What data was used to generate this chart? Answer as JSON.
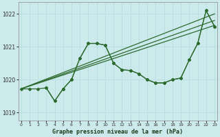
{
  "xlabel": "Graphe pression niveau de la mer (hPa)",
  "bg_color": "#cce9eb",
  "grid_color": "#b8dfe2",
  "line_color": "#2d6a2d",
  "xlim": [
    -0.3,
    23.3
  ],
  "ylim": [
    1018.75,
    1022.35
  ],
  "yticks": [
    1019,
    1020,
    1021,
    1022
  ],
  "xticks": [
    0,
    1,
    2,
    3,
    4,
    5,
    6,
    7,
    8,
    9,
    10,
    11,
    12,
    13,
    14,
    15,
    16,
    17,
    18,
    19,
    20,
    21,
    22,
    23
  ],
  "trend1_x": [
    0,
    23
  ],
  "trend1_y": [
    1019.72,
    1021.65
  ],
  "trend2_x": [
    0,
    23
  ],
  "trend2_y": [
    1019.72,
    1021.8
  ],
  "trend3_x": [
    0,
    23
  ],
  "trend3_y": [
    1019.72,
    1022.0
  ],
  "s_bell_x": [
    0,
    1,
    2,
    3,
    4,
    5,
    6,
    7,
    8,
    9,
    10,
    11,
    12,
    13,
    14,
    15,
    16,
    17,
    18,
    19,
    20,
    21,
    22,
    23
  ],
  "s_bell_y": [
    1019.72,
    1019.72,
    1019.72,
    1019.75,
    1019.35,
    1019.72,
    1020.0,
    1020.65,
    1021.1,
    1021.1,
    1021.05,
    1020.5,
    1020.3,
    1020.28,
    1020.18,
    1020.0,
    1019.9,
    1019.9,
    1020.0,
    1020.05,
    1020.6,
    1021.1,
    1022.1,
    1021.62
  ],
  "s_dip_x": [
    3,
    4,
    5,
    6,
    7,
    8,
    9,
    10,
    11,
    12,
    13,
    14,
    15,
    16,
    17,
    18,
    19,
    20,
    21,
    22,
    23
  ],
  "s_dip_y": [
    1019.75,
    1019.35,
    1019.72,
    1020.0,
    1020.65,
    1021.1,
    1021.1,
    1021.05,
    1020.5,
    1020.3,
    1020.28,
    1020.18,
    1020.0,
    1019.9,
    1019.9,
    1020.0,
    1020.05,
    1020.6,
    1021.1,
    1022.1,
    1021.62
  ]
}
